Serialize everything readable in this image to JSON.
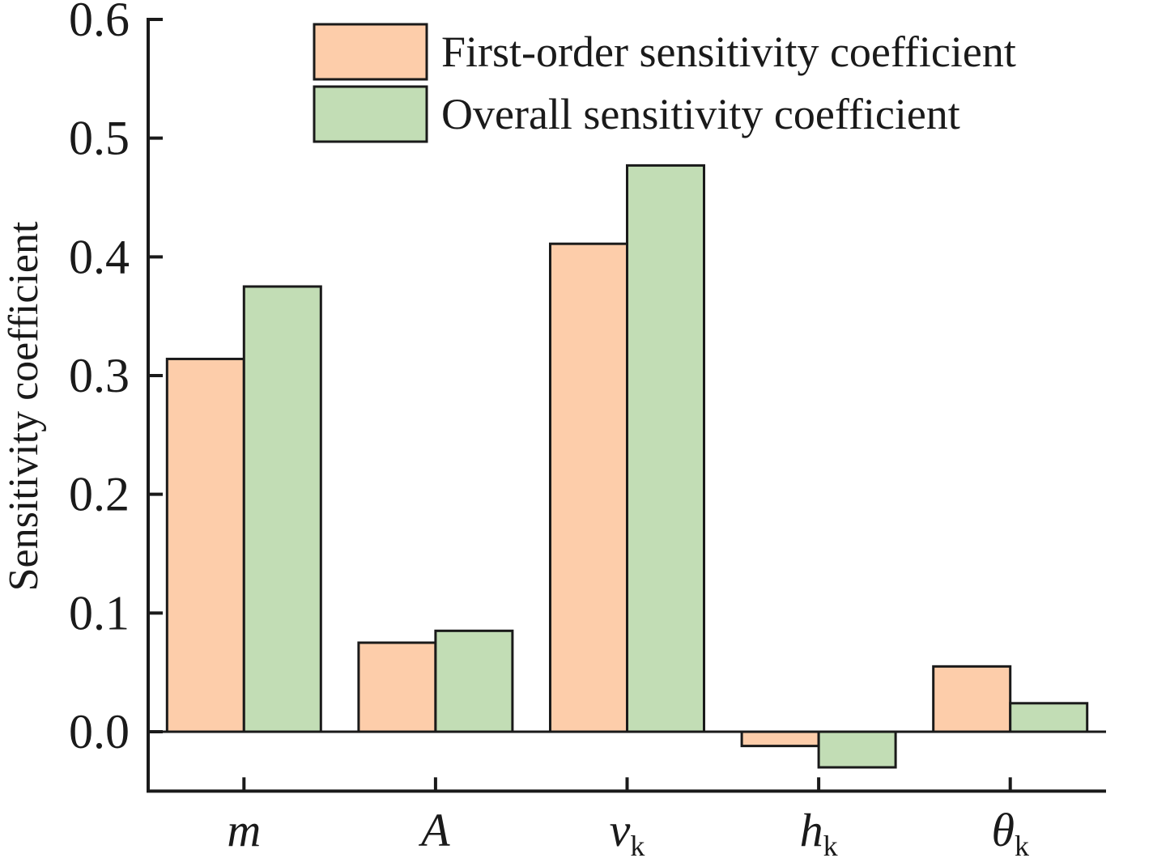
{
  "chart_data": {
    "type": "bar",
    "title": "",
    "xlabel": "",
    "ylabel": "Sensitivity coefficient",
    "ylim": [
      -0.05,
      0.6
    ],
    "yticks": [
      0.0,
      0.1,
      0.2,
      0.3,
      0.4,
      0.5,
      0.6
    ],
    "ytick_labels": [
      "0.0",
      "0.1",
      "0.2",
      "0.3",
      "0.4",
      "0.5",
      "0.6"
    ],
    "categories": [
      {
        "label": "m",
        "sub": ""
      },
      {
        "label": "A",
        "sub": ""
      },
      {
        "label": "v",
        "sub": "k"
      },
      {
        "label": "h",
        "sub": "k"
      },
      {
        "label": "θ",
        "sub": "k"
      }
    ],
    "series": [
      {
        "name": "First-order sensitivity coefficient",
        "color": "#FDCDAA",
        "values": [
          0.314,
          0.075,
          0.411,
          -0.012,
          0.055
        ]
      },
      {
        "name": "Overall sensitivity coefficient",
        "color": "#C2DDB5",
        "values": [
          0.375,
          0.085,
          0.477,
          -0.03,
          0.024
        ]
      }
    ],
    "grid": false,
    "legend_position": "top-right"
  }
}
